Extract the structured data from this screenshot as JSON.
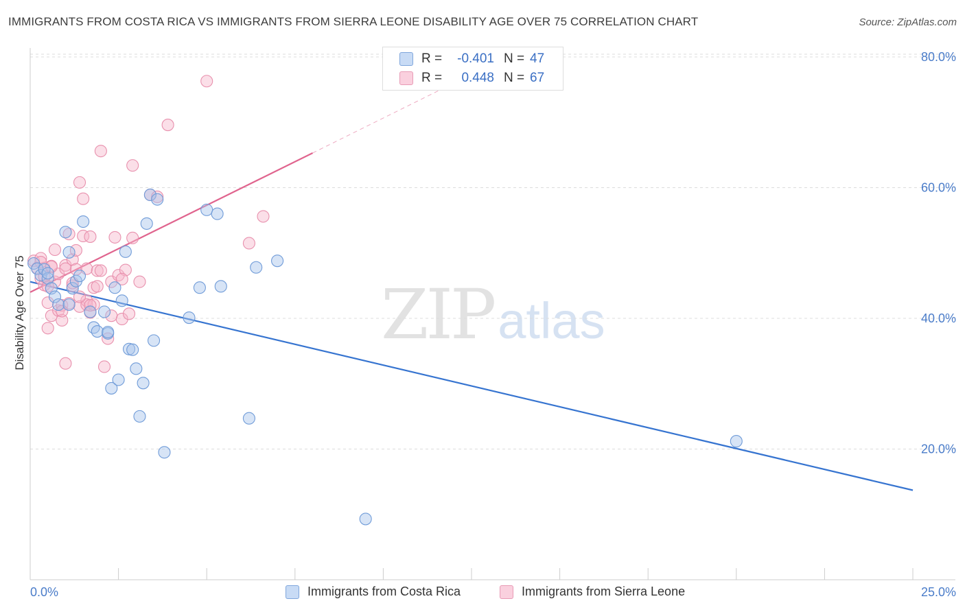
{
  "header": {
    "title": "IMMIGRANTS FROM COSTA RICA VS IMMIGRANTS FROM SIERRA LEONE DISABILITY AGE OVER 75 CORRELATION CHART",
    "source": "Source: ZipAtlas.com"
  },
  "watermark": {
    "zip": "ZIP",
    "atlas": "atlas"
  },
  "legend": {
    "rows": [
      {
        "r_label": "R =",
        "r_value": "-0.401",
        "n_label": "N =",
        "n_value": "47",
        "color": "#a7c4ec"
      },
      {
        "r_label": "R =",
        "r_value": "0.448",
        "n_label": "N =",
        "n_value": "67",
        "color": "#f6b8cc"
      }
    ]
  },
  "bottom_legend": {
    "costa_rica": "Immigrants from Costa Rica",
    "sierra_leone": "Immigrants from Sierra Leone"
  },
  "chart_data": {
    "type": "scatter",
    "title": "IMMIGRANTS FROM COSTA RICA VS IMMIGRANTS FROM SIERRA LEONE DISABILITY AGE OVER 75 CORRELATION CHART",
    "xlabel": "",
    "ylabel": "Disability Age Over 75",
    "xlim": [
      0,
      25
    ],
    "ylim": [
      0,
      82
    ],
    "x_tick_labels": [
      "0.0%",
      "25.0%"
    ],
    "y_ticks": [
      20,
      40,
      60,
      80
    ],
    "y_tick_labels": [
      "20.0%",
      "40.0%",
      "60.0%",
      "80.0%"
    ],
    "grid": true,
    "series": [
      {
        "name": "Immigrants from Costa Rica",
        "color": "#a7c4ec",
        "stroke": "#6f9bd8",
        "line_color": "#3674d0",
        "trend": {
          "x": [
            0,
            25
          ],
          "y": [
            45.6,
            13.7
          ]
        },
        "points": [
          [
            0.1,
            48.4
          ],
          [
            0.2,
            47.6
          ],
          [
            0.3,
            46.6
          ],
          [
            0.4,
            47.5
          ],
          [
            0.5,
            46.1
          ],
          [
            0.6,
            44.6
          ],
          [
            0.7,
            43.3
          ],
          [
            0.8,
            42.1
          ],
          [
            1.0,
            53.2
          ],
          [
            1.1,
            50.1
          ],
          [
            1.2,
            44.6
          ],
          [
            1.3,
            45.7
          ],
          [
            1.4,
            46.5
          ],
          [
            1.5,
            54.8
          ],
          [
            1.7,
            41.0
          ],
          [
            1.8,
            38.6
          ],
          [
            1.9,
            38.0
          ],
          [
            2.1,
            41.0
          ],
          [
            2.2,
            37.7
          ],
          [
            2.3,
            29.3
          ],
          [
            2.4,
            44.7
          ],
          [
            2.5,
            30.6
          ],
          [
            2.6,
            42.7
          ],
          [
            2.7,
            50.2
          ],
          [
            2.8,
            35.3
          ],
          [
            2.9,
            35.2
          ],
          [
            3.0,
            32.3
          ],
          [
            3.1,
            25.0
          ],
          [
            3.2,
            30.1
          ],
          [
            3.3,
            54.5
          ],
          [
            3.4,
            58.9
          ],
          [
            3.5,
            36.6
          ],
          [
            3.6,
            58.2
          ],
          [
            3.8,
            19.5
          ],
          [
            4.5,
            40.1
          ],
          [
            4.8,
            44.7
          ],
          [
            5.0,
            56.6
          ],
          [
            5.3,
            56.0
          ],
          [
            5.4,
            44.9
          ],
          [
            6.2,
            24.7
          ],
          [
            6.4,
            47.8
          ],
          [
            7.0,
            48.8
          ],
          [
            9.5,
            9.3
          ],
          [
            2.2,
            37.9
          ],
          [
            0.5,
            46.9
          ],
          [
            1.1,
            42.1
          ],
          [
            20.0,
            21.2
          ]
        ]
      },
      {
        "name": "Immigrants from Sierra Leone",
        "color": "#f6b8cc",
        "stroke": "#e890ad",
        "line_color": "#e0648e",
        "trend": {
          "x": [
            0,
            8.0,
            12.0
          ],
          "y": [
            44.0,
            65.3,
            76.0
          ]
        },
        "points": [
          [
            0.1,
            48.8
          ],
          [
            0.2,
            47.7
          ],
          [
            0.3,
            49.2
          ],
          [
            0.3,
            46.1
          ],
          [
            0.4,
            45.1
          ],
          [
            0.4,
            47.7
          ],
          [
            0.5,
            42.4
          ],
          [
            0.5,
            38.5
          ],
          [
            0.6,
            40.4
          ],
          [
            0.6,
            48.0
          ],
          [
            0.7,
            45.6
          ],
          [
            0.7,
            50.5
          ],
          [
            0.8,
            41.2
          ],
          [
            0.8,
            46.8
          ],
          [
            0.9,
            39.7
          ],
          [
            0.9,
            42.0
          ],
          [
            1.0,
            48.1
          ],
          [
            1.0,
            47.6
          ],
          [
            1.0,
            33.1
          ],
          [
            1.1,
            42.3
          ],
          [
            1.1,
            52.9
          ],
          [
            1.2,
            45.0
          ],
          [
            1.2,
            49.0
          ],
          [
            1.3,
            50.4
          ],
          [
            1.3,
            47.5
          ],
          [
            1.4,
            41.8
          ],
          [
            1.4,
            60.8
          ],
          [
            1.5,
            58.3
          ],
          [
            1.5,
            52.6
          ],
          [
            1.6,
            42.7
          ],
          [
            1.6,
            47.6
          ],
          [
            1.6,
            42.1
          ],
          [
            1.7,
            52.5
          ],
          [
            1.7,
            40.9
          ],
          [
            1.8,
            42.1
          ],
          [
            1.8,
            44.7
          ],
          [
            1.9,
            47.3
          ],
          [
            1.9,
            44.9
          ],
          [
            2.0,
            65.6
          ],
          [
            2.1,
            32.6
          ],
          [
            2.2,
            36.9
          ],
          [
            2.3,
            45.6
          ],
          [
            2.4,
            52.4
          ],
          [
            2.5,
            46.6
          ],
          [
            2.6,
            39.9
          ],
          [
            2.7,
            47.4
          ],
          [
            2.8,
            40.7
          ],
          [
            2.9,
            63.4
          ],
          [
            2.9,
            52.3
          ],
          [
            3.1,
            45.6
          ],
          [
            3.4,
            58.9
          ],
          [
            3.6,
            58.6
          ],
          [
            3.9,
            69.6
          ],
          [
            5.0,
            76.3
          ],
          [
            6.2,
            51.5
          ],
          [
            6.6,
            55.6
          ],
          [
            0.3,
            48.6
          ],
          [
            0.5,
            44.9
          ],
          [
            0.9,
            41.1
          ],
          [
            1.2,
            45.4
          ],
          [
            1.7,
            42.0
          ],
          [
            2.0,
            47.3
          ],
          [
            2.6,
            46.0
          ],
          [
            0.4,
            46.4
          ],
          [
            0.6,
            47.9
          ],
          [
            1.4,
            43.3
          ],
          [
            2.3,
            40.4
          ]
        ]
      }
    ]
  }
}
